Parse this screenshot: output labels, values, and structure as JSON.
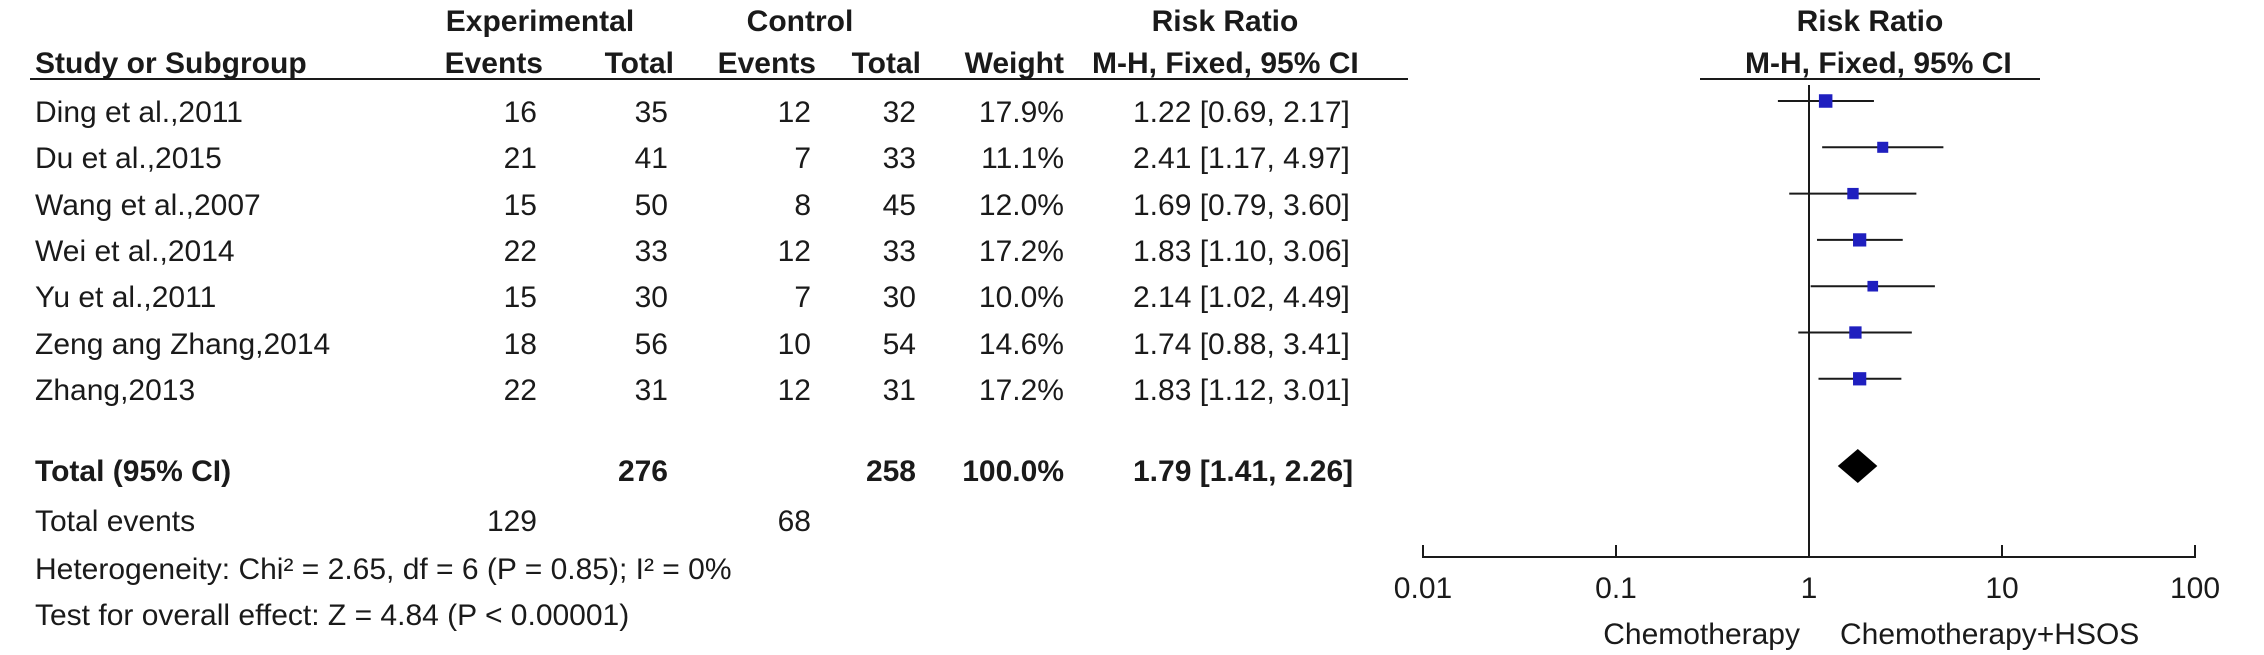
{
  "header": {
    "group1": "Experimental",
    "group2": "Control",
    "effect_measure": "Risk Ratio",
    "col_study": "Study or Subgroup",
    "col_events1": "Events",
    "col_total1": "Total",
    "col_events2": "Events",
    "col_total2": "Total",
    "col_weight": "Weight",
    "col_method": "M-H, Fixed, 95% CI",
    "plot_title": "Risk Ratio",
    "plot_method": "M-H, Fixed, 95% CI"
  },
  "studies": [
    {
      "name": "Ding et al.,2011",
      "e1": "16",
      "t1": "35",
      "e2": "12",
      "t2": "32",
      "weight": "17.9%",
      "ci_text": "1.22 [0.69, 2.17]"
    },
    {
      "name": "Du et al.,2015",
      "e1": "21",
      "t1": "41",
      "e2": "7",
      "t2": "33",
      "weight": "11.1%",
      "ci_text": "2.41 [1.17, 4.97]"
    },
    {
      "name": "Wang et al.,2007",
      "e1": "15",
      "t1": "50",
      "e2": "8",
      "t2": "45",
      "weight": "12.0%",
      "ci_text": "1.69 [0.79, 3.60]"
    },
    {
      "name": "Wei et al.,2014",
      "e1": "22",
      "t1": "33",
      "e2": "12",
      "t2": "33",
      "weight": "17.2%",
      "ci_text": "1.83 [1.10, 3.06]"
    },
    {
      "name": "Yu et al.,2011",
      "e1": "15",
      "t1": "30",
      "e2": "7",
      "t2": "30",
      "weight": "10.0%",
      "ci_text": "2.14 [1.02, 4.49]"
    },
    {
      "name": "Zeng ang Zhang,2014",
      "e1": "18",
      "t1": "56",
      "e2": "10",
      "t2": "54",
      "weight": "14.6%",
      "ci_text": "1.74 [0.88, 3.41]"
    },
    {
      "name": "Zhang,2013",
      "e1": "22",
      "t1": "31",
      "e2": "12",
      "t2": "31",
      "weight": "17.2%",
      "ci_text": "1.83 [1.12, 3.01]"
    }
  ],
  "total": {
    "label": "Total (95% CI)",
    "t1": "276",
    "t2": "258",
    "weight": "100.0%",
    "ci_text": "1.79 [1.41, 2.26]"
  },
  "total_events": {
    "label": "Total events",
    "e1": "129",
    "e2": "68"
  },
  "footer": {
    "heterogeneity": "Heterogeneity: Chi² = 2.65, df = 6 (P = 0.85); I² = 0%",
    "overall_effect": "Test for overall effect: Z = 4.84 (P < 0.00001)"
  },
  "chart_data": {
    "type": "scatter",
    "x_scale": "log",
    "xlim": [
      0.01,
      100
    ],
    "ticks": [
      "0.01",
      "0.1",
      "1",
      "10",
      "100"
    ],
    "tick_values": [
      0.01,
      0.1,
      1,
      10,
      100
    ],
    "favours_left": "Chemotherapy",
    "favours_right": "Chemotherapy+HSOS",
    "null_line": 1,
    "marker_color": "#1f1fbf",
    "points": [
      {
        "rr": 1.22,
        "lo": 0.69,
        "hi": 2.17,
        "weight": 17.9
      },
      {
        "rr": 2.41,
        "lo": 1.17,
        "hi": 4.97,
        "weight": 11.1
      },
      {
        "rr": 1.69,
        "lo": 0.79,
        "hi": 3.6,
        "weight": 12.0
      },
      {
        "rr": 1.83,
        "lo": 1.1,
        "hi": 3.06,
        "weight": 17.2
      },
      {
        "rr": 2.14,
        "lo": 1.02,
        "hi": 4.49,
        "weight": 10.0
      },
      {
        "rr": 1.74,
        "lo": 0.88,
        "hi": 3.41,
        "weight": 14.6
      },
      {
        "rr": 1.83,
        "lo": 1.12,
        "hi": 3.01,
        "weight": 17.2
      }
    ],
    "pooled": {
      "rr": 1.79,
      "lo": 1.41,
      "hi": 2.26
    }
  }
}
